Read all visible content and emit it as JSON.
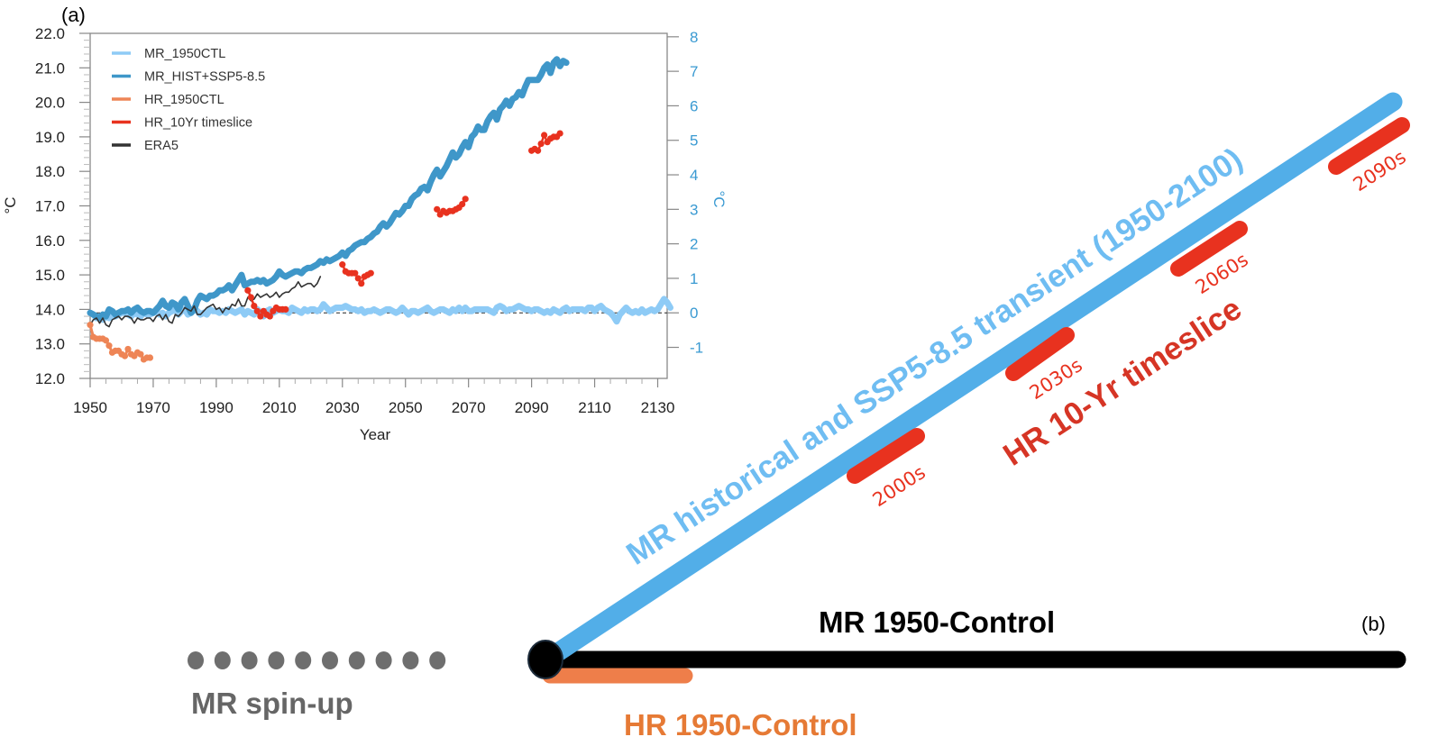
{
  "figure": {
    "panel_a_label": "(a)",
    "panel_b_label": "(b)"
  },
  "colors": {
    "mr_1950ctl": "#8ecbf6",
    "mr_hist_ssp": "#3f97c9",
    "hr_1950ctl": "#ee8556",
    "hr_timeslice": "#e8321f",
    "era5": "#333333",
    "transient_bar": "#52aee8",
    "transient_text": "#6fbdf2",
    "spinup": "#6e6e6e",
    "control_mr": "#000000",
    "control_hr": "#ee7e4a",
    "right_axis": "#3a9ad2"
  },
  "chart_data": {
    "type": "line",
    "title": "",
    "xlabel": "Year",
    "ylabel": "°C",
    "ylabel_right": "°C",
    "xlim": [
      1950,
      2133
    ],
    "ylim": [
      12.0,
      22.0
    ],
    "ylim_right": [
      -1.9,
      8.1
    ],
    "right_axis_offset": 13.9,
    "x_ticks": [
      1950,
      1970,
      1990,
      2010,
      2030,
      2050,
      2070,
      2090,
      2110,
      2130
    ],
    "y_ticks": [
      "12.0",
      "13.0",
      "14.0",
      "15.0",
      "16.0",
      "17.0",
      "18.0",
      "19.0",
      "20.0",
      "21.0",
      "22.0"
    ],
    "y_ticks_right": [
      "-1",
      "0",
      "1",
      "2",
      "3",
      "4",
      "5",
      "6",
      "7",
      "8"
    ],
    "reference_line": {
      "y": 13.9,
      "style": "dashed"
    },
    "legend": {
      "placement": "top-left",
      "entries": [
        "MR_1950CTL",
        "MR_HIST+SSP5-8.5",
        "HR_1950CTL",
        "HR_10Yr timeslice",
        "ERA5"
      ]
    },
    "series": [
      {
        "name": "MR_HIST+SSP5-8.5",
        "x_start": 1950,
        "values": [
          13.9,
          13.85,
          13.8,
          13.75,
          13.85,
          13.8,
          14.0,
          13.95,
          13.85,
          13.9,
          13.95,
          13.95,
          14.0,
          13.9,
          14.0,
          14.05,
          13.95,
          13.9,
          13.95,
          13.95,
          13.9,
          14.0,
          14.1,
          14.25,
          14.1,
          14.05,
          14.2,
          14.15,
          14.0,
          14.2,
          14.3,
          14.1,
          13.9,
          14.0,
          14.25,
          14.4,
          14.35,
          14.3,
          14.4,
          14.4,
          14.45,
          14.55,
          14.55,
          14.6,
          14.7,
          14.55,
          14.7,
          14.85,
          15.0,
          14.7,
          14.75,
          14.8,
          14.8,
          14.85,
          14.8,
          14.85,
          14.75,
          14.8,
          14.85,
          14.95,
          15.1,
          15.0,
          14.95,
          15.0,
          15.05,
          15.1,
          15.1,
          15.05,
          15.15,
          15.2,
          15.2,
          15.25,
          15.3,
          15.4,
          15.35,
          15.45,
          15.4,
          15.45,
          15.5,
          15.55,
          15.65,
          15.55,
          15.7,
          15.75,
          15.85,
          15.9,
          15.95,
          15.95,
          16.05,
          16.1,
          16.2,
          16.25,
          16.4,
          16.5,
          16.4,
          16.5,
          16.65,
          16.8,
          16.75,
          16.85,
          17.0,
          17.0,
          17.2,
          17.3,
          17.35,
          17.5,
          17.55,
          17.45,
          17.7,
          17.9,
          18.05,
          17.85,
          18.0,
          18.15,
          18.35,
          18.55,
          18.4,
          18.5,
          18.7,
          18.85,
          18.7,
          19.0,
          19.1,
          19.3,
          19.2,
          19.2,
          19.45,
          19.6,
          19.7,
          19.5,
          19.8,
          19.9,
          20.05,
          19.9,
          20.1,
          20.15,
          20.3,
          20.2,
          20.45,
          20.65,
          20.65,
          20.65,
          20.65,
          20.8,
          21.0,
          21.1,
          20.85,
          21.15,
          21.25,
          21.05,
          21.2,
          21.15
        ]
      },
      {
        "name": "MR_1950CTL",
        "x_start": 1950,
        "values": [
          13.9,
          13.85,
          13.75,
          13.8,
          13.7,
          13.8,
          13.75,
          13.8,
          13.8,
          13.85,
          13.9,
          13.9,
          13.85,
          13.8,
          13.9,
          13.85,
          13.8,
          13.9,
          13.85,
          13.85,
          13.9,
          13.95,
          13.85,
          13.9,
          13.8,
          13.9,
          13.95,
          14.0,
          13.85,
          13.95,
          14.0,
          13.85,
          13.9,
          14.0,
          13.95,
          13.85,
          13.9,
          13.85,
          14.0,
          13.95,
          13.95,
          13.9,
          13.95,
          13.9,
          14.0,
          13.95,
          13.9,
          13.95,
          14.0,
          13.85,
          13.95,
          13.9,
          13.85,
          14.0,
          13.9,
          13.8,
          13.95,
          14.0,
          13.9,
          13.95,
          14.0,
          13.95,
          13.95,
          13.9,
          14.05,
          14.0,
          13.95,
          13.9,
          14.0,
          13.95,
          14.0,
          14.0,
          13.95,
          14.0,
          14.15,
          14.05,
          13.95,
          14.0,
          14.05,
          14.05,
          14.05,
          14.1,
          14.05,
          14.0,
          14.0,
          13.95,
          14.0,
          13.9,
          13.95,
          13.95,
          14.0,
          13.95,
          13.9,
          13.95,
          14.0,
          14.0,
          13.95,
          13.9,
          13.95,
          14.05,
          13.95,
          13.85,
          13.95,
          13.95,
          13.9,
          13.95,
          14.0,
          14.05,
          13.95,
          13.9,
          13.95,
          14.0,
          14.0,
          13.95,
          13.9,
          14.0,
          13.95,
          14.05,
          13.95,
          14.05,
          13.95,
          13.95,
          14.0,
          14.0,
          14.0,
          14.0,
          14.0,
          13.95,
          13.9,
          14.05,
          14.1,
          14.05,
          13.95,
          14.0,
          14.0,
          14.05,
          14.1,
          14.05,
          14.0,
          14.0,
          13.95,
          14.0,
          14.0,
          13.95,
          13.9,
          13.95,
          13.9,
          14.0,
          13.95,
          13.9,
          14.0,
          14.05,
          13.95,
          14.0,
          14.0,
          14.0,
          14.0,
          13.95,
          14.05,
          14.05,
          13.95,
          14.05,
          14.1,
          14.0,
          13.95,
          13.9,
          13.8,
          13.65,
          13.85,
          13.95,
          14.05,
          13.95,
          13.9,
          13.95,
          13.9,
          14.0,
          13.9,
          13.95,
          14.0,
          13.95,
          14.0,
          14.15,
          14.3,
          14.2,
          14.05
        ]
      },
      {
        "name": "HR_1950CTL",
        "x_start": 1950,
        "values": [
          13.55,
          13.2,
          13.15,
          13.15,
          13.15,
          13.1,
          12.95,
          12.75,
          12.8,
          12.8,
          12.7,
          12.65,
          12.85,
          12.7,
          12.65,
          12.75,
          12.7,
          12.55,
          12.6,
          12.6
        ]
      },
      {
        "name": "HR_10Yr timeslice",
        "segments": [
          {
            "x_start": 2000,
            "values": [
              14.55,
              14.35,
              14.1,
              13.95,
              13.8,
              13.95,
              13.85,
              13.8,
              13.95,
              14.05,
              14.0,
              14.0,
              14.0
            ]
          },
          {
            "x_start": 2030,
            "values": [
              15.3,
              15.1,
              15.05,
              15.05,
              15.05,
              14.9,
              14.75,
              14.95,
              15.0,
              15.05
            ]
          },
          {
            "x_start": 2060,
            "values": [
              16.9,
              16.75,
              16.85,
              16.8,
              16.85,
              16.85,
              16.9,
              16.95,
              17.05,
              17.2
            ]
          },
          {
            "x_start": 2090,
            "values": [
              18.6,
              18.65,
              18.6,
              18.8,
              19.05,
              18.85,
              18.95,
              19.0,
              19.0,
              19.1
            ]
          }
        ]
      },
      {
        "name": "ERA5",
        "x_start": 1950,
        "values": [
          13.55,
          13.7,
          13.75,
          13.6,
          13.75,
          13.55,
          13.5,
          13.7,
          13.75,
          13.8,
          13.7,
          13.8,
          13.8,
          13.75,
          13.6,
          13.75,
          13.7,
          13.7,
          13.75,
          13.75,
          13.65,
          13.8,
          13.85,
          13.7,
          13.85,
          13.65,
          13.6,
          13.85,
          13.8,
          13.9,
          14.05,
          14.0,
          13.95,
          14.1,
          13.85,
          13.85,
          13.95,
          14.05,
          14.1,
          14.15,
          14.0,
          14.05,
          13.9,
          14.05,
          14.0,
          14.15,
          14.1,
          14.3,
          14.1,
          14.1,
          14.35,
          14.25,
          14.3,
          14.45,
          14.35,
          14.4,
          14.45,
          14.35,
          14.4,
          14.5,
          14.35,
          14.45,
          14.5,
          14.5,
          14.6,
          14.65,
          14.8,
          14.65,
          14.7,
          14.75,
          14.75,
          14.65,
          14.75,
          14.95
        ]
      }
    ]
  },
  "diagram": {
    "spinup_label": "MR spin-up",
    "mr_control_label": "MR 1950-Control",
    "hr_control_label": "HR 1950-Control",
    "transient_label": "MR historical and SSP5-8.5 transient (1950-2100)",
    "timeslice_label": "HR 10-Yr timeslice",
    "timeslices": [
      "2000s",
      "2030s",
      "2060s",
      "2090s"
    ],
    "spinup_dot_count": 10
  }
}
